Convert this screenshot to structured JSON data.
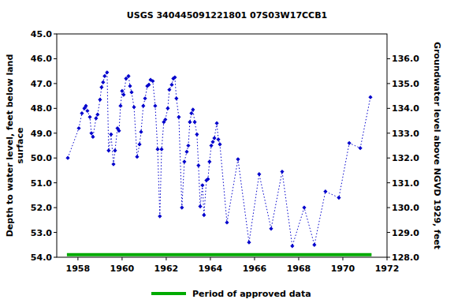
{
  "chart_data": {
    "type": "line",
    "title": "USGS 340445091221801 07S03W17CCB1",
    "y_label": [
      "Depth to water level, feet below land",
      "surface"
    ],
    "y2_label": "Groundwater level above NGVD 1929, feet",
    "xlim": [
      1957.04,
      1972
    ],
    "xticks": [
      1958,
      1960,
      1962,
      1964,
      1966,
      1968,
      1970,
      1972
    ],
    "ylim": [
      54,
      45
    ],
    "yticks": [
      {
        "value": 45,
        "label": "45.0"
      },
      {
        "value": 46,
        "label": "46.0"
      },
      {
        "value": 47,
        "label": "47.0"
      },
      {
        "value": 48,
        "label": "48.0"
      },
      {
        "value": 49,
        "label": "49.0"
      },
      {
        "value": 50,
        "label": "50.0"
      },
      {
        "value": 51,
        "label": "51.0"
      },
      {
        "value": 52,
        "label": "52.0"
      },
      {
        "value": 53,
        "label": "53.0"
      },
      {
        "value": 54,
        "label": "54.0"
      }
    ],
    "y2lim": [
      128,
      137
    ],
    "y2ticks": [
      {
        "value": 128,
        "label": "128.0"
      },
      {
        "value": 129,
        "label": "129.0"
      },
      {
        "value": 130,
        "label": "130.0"
      },
      {
        "value": 131,
        "label": "131.0"
      },
      {
        "value": 132,
        "label": "132.0"
      },
      {
        "value": 133,
        "label": "133.0"
      },
      {
        "value": 134,
        "label": "134.0"
      },
      {
        "value": 135,
        "label": "135.0"
      },
      {
        "value": 136,
        "label": "136.0"
      }
    ],
    "grid": false,
    "legend": "bottom",
    "series": [
      {
        "color": "#0000cc",
        "marker": "diamond",
        "line_style": "dotted",
        "x": [
          1957.54,
          1958.04,
          1958.18,
          1958.29,
          1958.36,
          1958.43,
          1958.54,
          1958.61,
          1958.68,
          1958.82,
          1958.89,
          1959.0,
          1959.07,
          1959.14,
          1959.21,
          1959.32,
          1959.39,
          1959.5,
          1959.61,
          1959.68,
          1959.79,
          1959.86,
          1959.93,
          1960.0,
          1960.07,
          1960.18,
          1960.29,
          1960.36,
          1960.43,
          1960.54,
          1960.68,
          1960.79,
          1960.86,
          1960.96,
          1961.04,
          1961.14,
          1961.21,
          1961.29,
          1961.39,
          1961.5,
          1961.61,
          1961.71,
          1961.79,
          1961.89,
          1961.96,
          1962.07,
          1962.14,
          1962.25,
          1962.32,
          1962.39,
          1962.46,
          1962.57,
          1962.71,
          1962.82,
          1962.93,
          1963.0,
          1963.07,
          1963.14,
          1963.21,
          1963.29,
          1963.39,
          1963.46,
          1963.54,
          1963.64,
          1963.71,
          1963.82,
          1963.89,
          1963.96,
          1964.04,
          1964.11,
          1964.18,
          1964.29,
          1964.36,
          1964.43,
          1964.75,
          1965.25,
          1965.75,
          1966.21,
          1966.75,
          1967.25,
          1967.71,
          1968.25,
          1968.71,
          1969.21,
          1969.82,
          1970.29,
          1970.79,
          1971.25
        ],
        "values": [
          50.0,
          48.8,
          48.2,
          48.0,
          47.9,
          48.1,
          48.35,
          49.0,
          49.15,
          48.4,
          48.25,
          47.65,
          47.15,
          46.95,
          46.7,
          46.55,
          49.7,
          49.05,
          50.25,
          49.7,
          48.8,
          48.9,
          47.9,
          47.3,
          47.45,
          46.8,
          46.7,
          47.1,
          47.35,
          47.95,
          49.95,
          49.45,
          48.95,
          47.9,
          47.6,
          47.1,
          47.05,
          46.85,
          46.9,
          47.9,
          49.65,
          52.35,
          49.65,
          48.55,
          48.45,
          48.0,
          47.25,
          47.05,
          46.8,
          46.75,
          47.6,
          48.35,
          52.0,
          50.15,
          49.75,
          49.5,
          48.55,
          48.2,
          48.05,
          48.55,
          49.05,
          50.3,
          51.95,
          51.1,
          52.3,
          50.9,
          50.85,
          50.15,
          49.5,
          49.35,
          49.2,
          48.6,
          49.25,
          49.45,
          52.6,
          50.05,
          53.4,
          50.65,
          52.85,
          50.55,
          53.55,
          52.0,
          53.5,
          51.35,
          51.6,
          49.4,
          49.6,
          47.55
        ]
      },
      {
        "name": "Period of approved data",
        "color": "#00aa00",
        "type": "line",
        "line_style": "solid",
        "x": [
          1957.5,
          1971.3
        ],
        "values": [
          53.9,
          53.9
        ]
      }
    ]
  }
}
